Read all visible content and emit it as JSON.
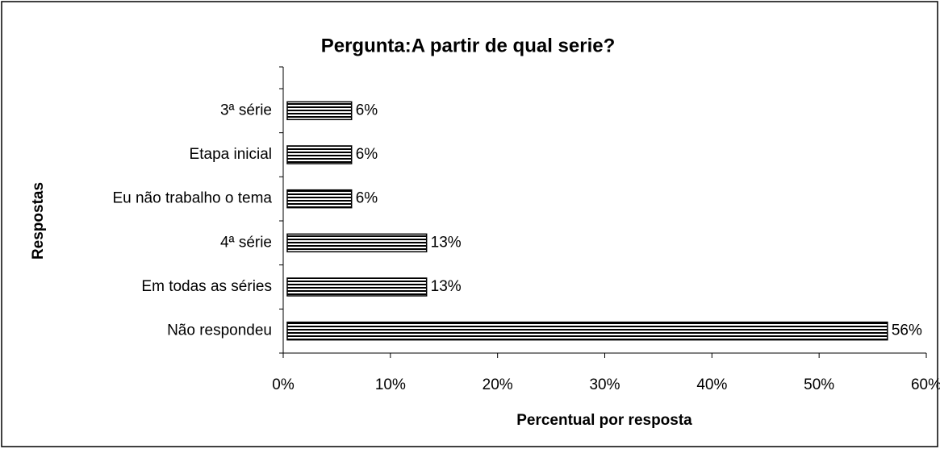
{
  "chart_data": {
    "type": "hbar",
    "title": "Pergunta:A partir de qual serie?",
    "x_label": "Percentual por resposta",
    "y_label": "Respostas",
    "categories": [
      "3ª série",
      "Etapa inicial",
      "Eu não trabalho o tema",
      "4ª série",
      "Em todas as séries",
      "Não respondeu"
    ],
    "values": [
      6,
      6,
      6,
      13,
      13,
      56
    ],
    "value_labels": [
      "6%",
      "6%",
      "6%",
      "13%",
      "13%",
      "56%"
    ],
    "color": "#000000",
    "xlim": [
      0,
      60
    ],
    "xticks": [
      {
        "value": 0,
        "label": "0%"
      },
      {
        "value": 10,
        "label": "10%"
      },
      {
        "value": 20,
        "label": "20%"
      },
      {
        "value": 30,
        "label": "30%"
      },
      {
        "value": 40,
        "label": "40%"
      },
      {
        "value": 50,
        "label": "50%"
      },
      {
        "value": 60,
        "label": "60%"
      }
    ]
  }
}
